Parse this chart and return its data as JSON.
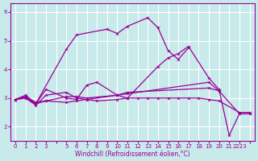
{
  "background_color": "#c8eaea",
  "grid_color": "#ffffff",
  "line_color": "#990099",
  "xlim": [
    -0.5,
    23.5
  ],
  "ylim": [
    1.5,
    6.3
  ],
  "yticks": [
    2,
    3,
    4,
    5,
    6
  ],
  "xtick_positions": [
    0,
    1,
    2,
    3,
    4,
    5,
    6,
    7,
    8,
    9,
    10,
    11,
    12,
    13,
    14,
    15,
    16,
    17,
    18,
    19,
    20,
    21,
    22,
    23
  ],
  "xtick_labels": [
    "0",
    "1",
    "2",
    "3",
    "",
    "5",
    "6",
    "7",
    "8",
    "9",
    "10",
    "11",
    "12",
    "13",
    "14",
    "15",
    "16",
    "17",
    "18",
    "19",
    "20",
    "21",
    "2223",
    ""
  ],
  "xlabel": "Windchill (Refroidissement éolien,°C)",
  "series": [
    [
      [
        0,
        2.95
      ],
      [
        1,
        3.05
      ],
      [
        2,
        2.8
      ],
      [
        3,
        3.3
      ],
      [
        5,
        3.0
      ],
      [
        6,
        2.95
      ],
      [
        7,
        3.45
      ],
      [
        8,
        3.55
      ],
      [
        10,
        3.1
      ],
      [
        11,
        3.0
      ],
      [
        14,
        4.1
      ],
      [
        15,
        4.4
      ],
      [
        16,
        4.55
      ],
      [
        17,
        4.8
      ],
      [
        19,
        3.7
      ],
      [
        20,
        3.3
      ],
      [
        21,
        1.7
      ],
      [
        22,
        2.45
      ],
      [
        23,
        2.45
      ]
    ],
    [
      [
        0,
        2.95
      ],
      [
        1,
        3.0
      ],
      [
        2,
        2.75
      ],
      [
        3,
        3.1
      ],
      [
        5,
        3.2
      ],
      [
        6,
        3.0
      ],
      [
        7,
        2.95
      ],
      [
        10,
        3.1
      ],
      [
        11,
        3.15
      ],
      [
        19,
        3.55
      ],
      [
        20,
        3.25
      ],
      [
        22,
        2.45
      ],
      [
        23,
        2.45
      ]
    ],
    [
      [
        0,
        2.95
      ],
      [
        1,
        3.05
      ],
      [
        2,
        2.85
      ],
      [
        3,
        2.9
      ],
      [
        5,
        3.05
      ],
      [
        6,
        3.05
      ],
      [
        7,
        3.0
      ],
      [
        10,
        3.1
      ],
      [
        11,
        3.2
      ],
      [
        19,
        3.35
      ],
      [
        20,
        3.25
      ]
    ],
    [
      [
        0,
        2.95
      ],
      [
        1,
        3.0
      ],
      [
        2,
        2.8
      ],
      [
        3,
        2.9
      ],
      [
        5,
        2.85
      ],
      [
        6,
        2.9
      ],
      [
        7,
        2.95
      ],
      [
        8,
        2.9
      ],
      [
        10,
        2.95
      ],
      [
        11,
        3.0
      ],
      [
        12,
        3.0
      ],
      [
        13,
        3.0
      ],
      [
        14,
        3.0
      ],
      [
        15,
        3.0
      ],
      [
        16,
        3.0
      ],
      [
        17,
        3.0
      ],
      [
        18,
        3.0
      ],
      [
        19,
        2.95
      ],
      [
        20,
        2.9
      ],
      [
        22,
        2.5
      ],
      [
        23,
        2.5
      ]
    ],
    [
      [
        0,
        2.95
      ],
      [
        1,
        3.1
      ],
      [
        2,
        2.8
      ],
      [
        5,
        4.7
      ],
      [
        6,
        5.2
      ],
      [
        9,
        5.4
      ],
      [
        10,
        5.25
      ],
      [
        11,
        5.5
      ],
      [
        13,
        5.8
      ],
      [
        14,
        5.45
      ],
      [
        15,
        4.65
      ],
      [
        16,
        4.35
      ],
      [
        17,
        4.75
      ]
    ]
  ]
}
